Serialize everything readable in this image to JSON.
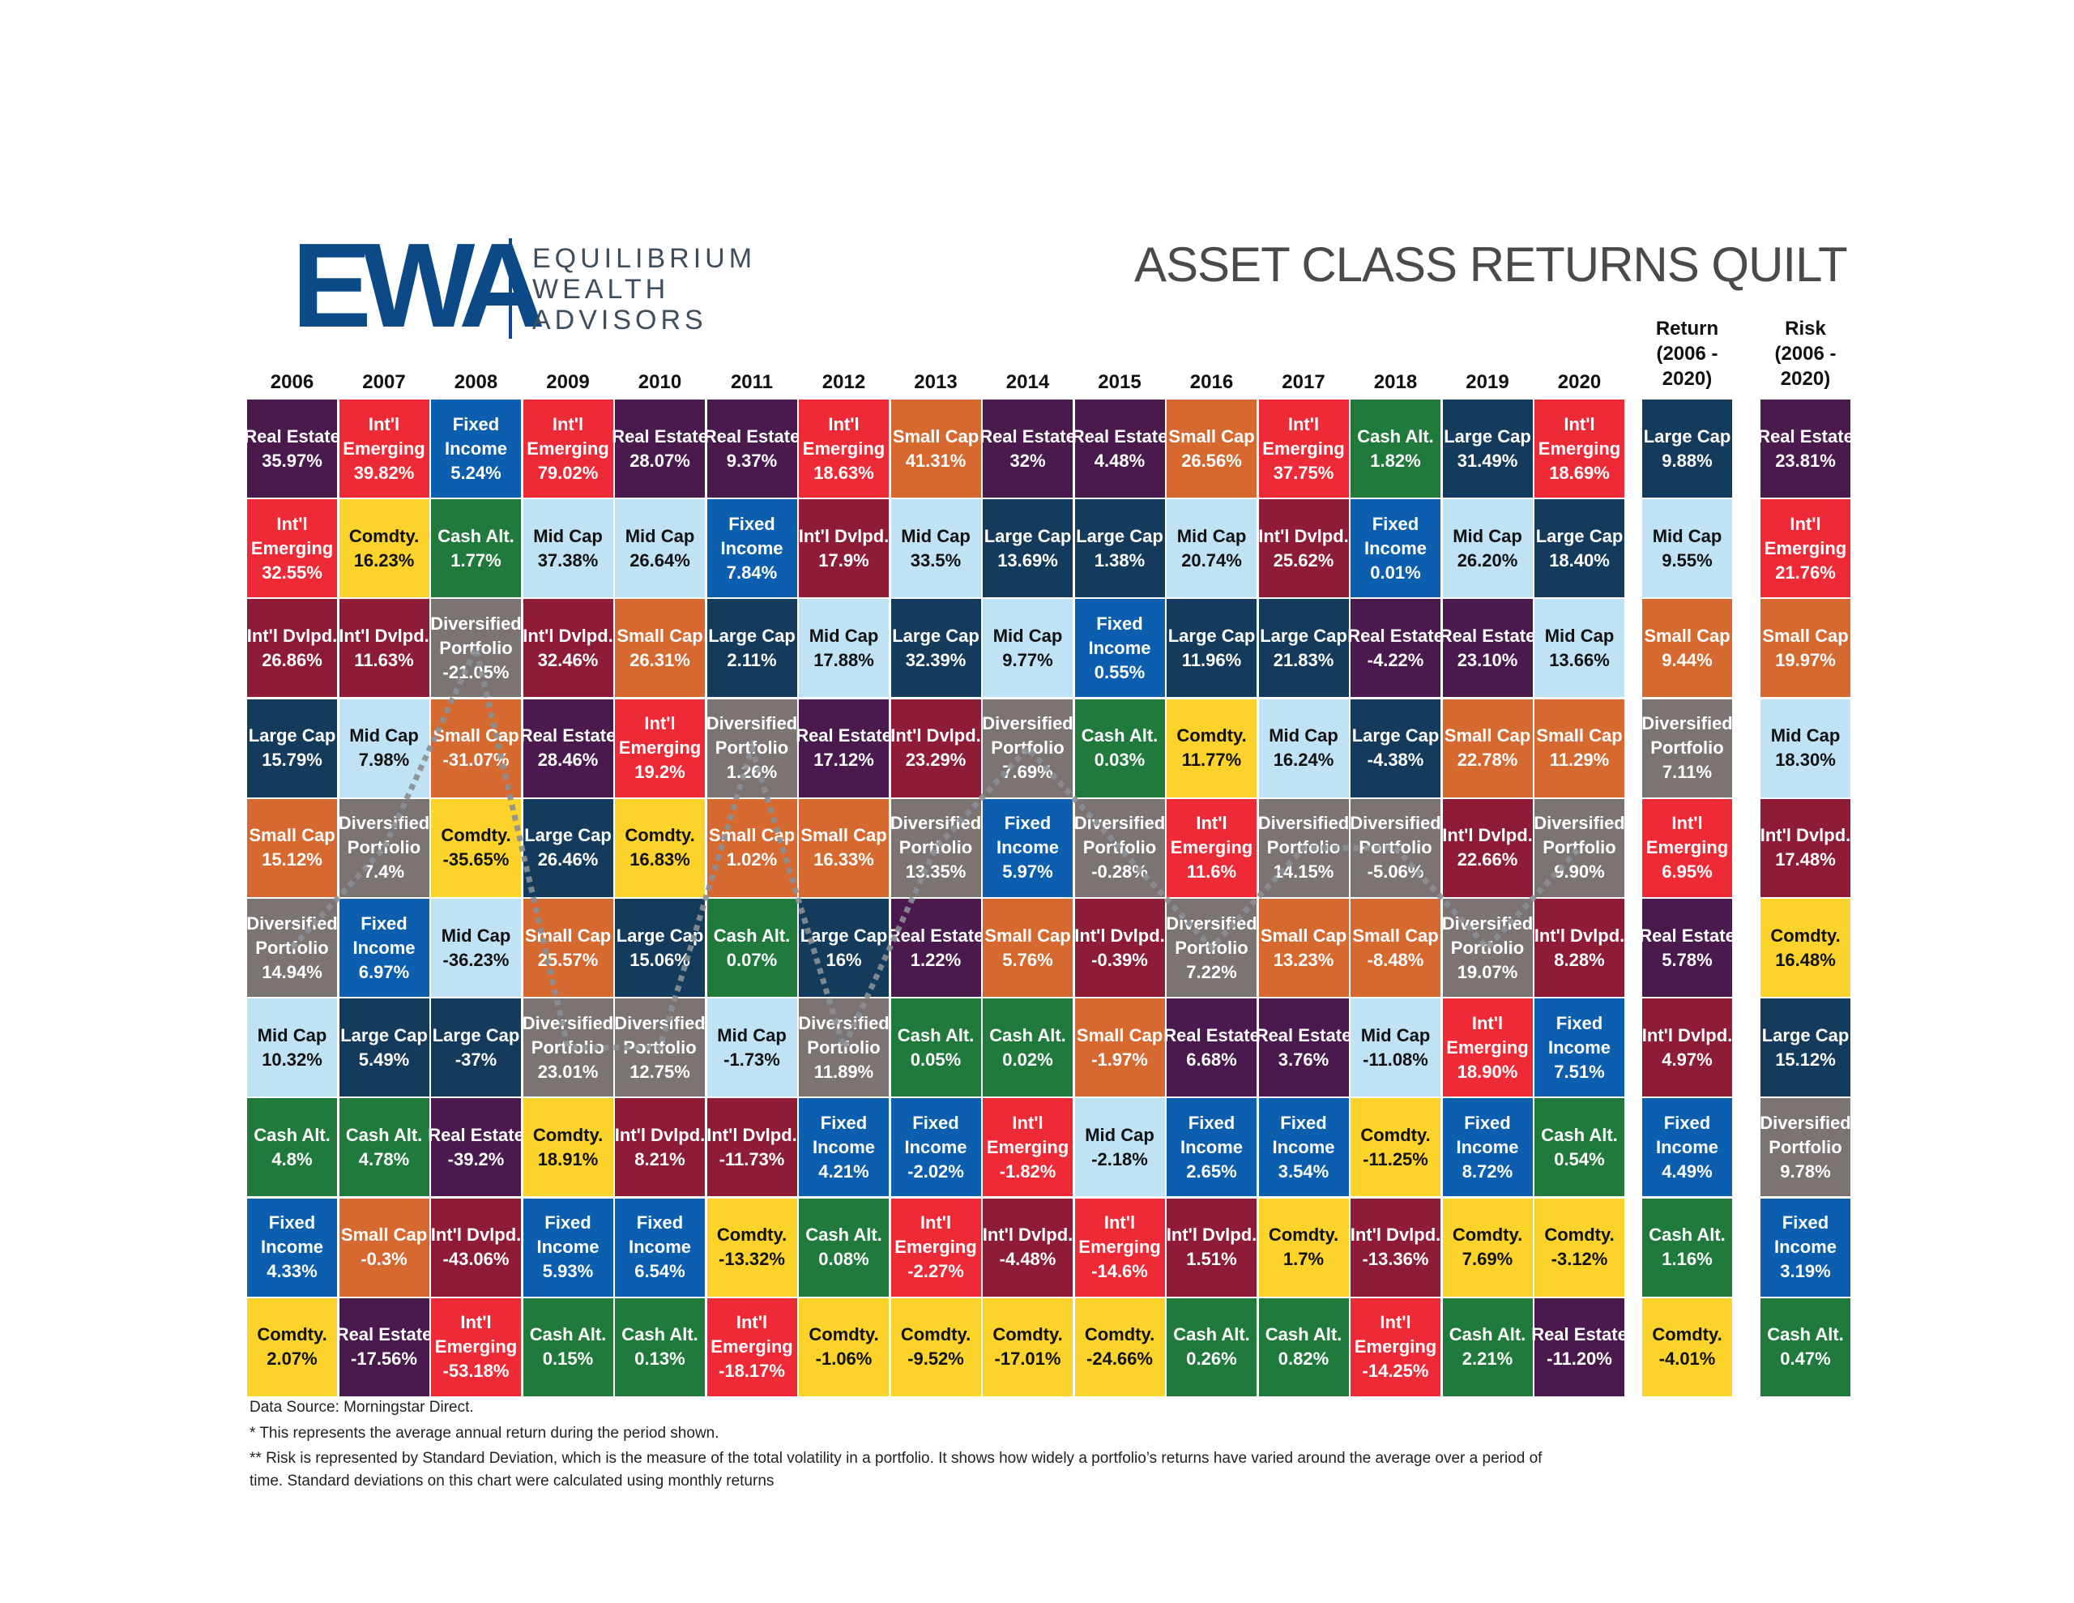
{
  "logo": {
    "mark": "EWA",
    "lines": [
      "EQUILIBRIUM",
      "WEALTH",
      "ADVISORS"
    ]
  },
  "title": "ASSET CLASS RETURNS QUILT",
  "colors": {
    "Real Estate": "#4a1a4e",
    "Int'l Emerging": "#ed2a36",
    "Fixed Income": "#0b5fae",
    "Int'l Dvlpd.": "#8e1c36",
    "Comdty.": "#fbd32a",
    "Cash Alt.": "#1f7a3c",
    "Mid Cap": "#bfe2f4",
    "Diversified Portfolio": "#7b7472",
    "Large Cap": "#143a5c",
    "Small Cap": "#d6692f"
  },
  "dark_text_classes": [
    "Comdty.",
    "Mid Cap"
  ],
  "chart_data": {
    "type": "table",
    "title": "ASSET CLASS RETURNS QUILT",
    "years": [
      "2006",
      "2007",
      "2008",
      "2009",
      "2010",
      "2011",
      "2012",
      "2013",
      "2014",
      "2015",
      "2016",
      "2017",
      "2018",
      "2019",
      "2020"
    ],
    "columns": [
      [
        [
          "Real Estate",
          "35.97%"
        ],
        [
          "Int'l Emerging",
          "32.55%"
        ],
        [
          "Int'l Dvlpd.",
          "26.86%"
        ],
        [
          "Large Cap",
          "15.79%"
        ],
        [
          "Small Cap",
          "15.12%"
        ],
        [
          "Diversified Portfolio",
          "14.94%"
        ],
        [
          "Mid Cap",
          "10.32%"
        ],
        [
          "Cash Alt.",
          "4.8%"
        ],
        [
          "Fixed Income",
          "4.33%"
        ],
        [
          "Comdty.",
          "2.07%"
        ]
      ],
      [
        [
          "Int'l Emerging",
          "39.82%"
        ],
        [
          "Comdty.",
          "16.23%"
        ],
        [
          "Int'l Dvlpd.",
          "11.63%"
        ],
        [
          "Mid Cap",
          "7.98%"
        ],
        [
          "Diversified Portfolio",
          "7.4%"
        ],
        [
          "Fixed Income",
          "6.97%"
        ],
        [
          "Large Cap",
          "5.49%"
        ],
        [
          "Cash Alt.",
          "4.78%"
        ],
        [
          "Small Cap",
          "-0.3%"
        ],
        [
          "Real Estate",
          "-17.56%"
        ]
      ],
      [
        [
          "Fixed Income",
          "5.24%"
        ],
        [
          "Cash Alt.",
          "1.77%"
        ],
        [
          "Diversified Portfolio",
          "-21.05%"
        ],
        [
          "Small Cap",
          "-31.07%"
        ],
        [
          "Comdty.",
          "-35.65%"
        ],
        [
          "Mid Cap",
          "-36.23%"
        ],
        [
          "Large Cap",
          "-37%"
        ],
        [
          "Real Estate",
          "-39.2%"
        ],
        [
          "Int'l Dvlpd.",
          "-43.06%"
        ],
        [
          "Int'l Emerging",
          "-53.18%"
        ]
      ],
      [
        [
          "Int'l Emerging",
          "79.02%"
        ],
        [
          "Mid Cap",
          "37.38%"
        ],
        [
          "Int'l Dvlpd.",
          "32.46%"
        ],
        [
          "Real Estate",
          "28.46%"
        ],
        [
          "Large Cap",
          "26.46%"
        ],
        [
          "Small Cap",
          "25.57%"
        ],
        [
          "Diversified Portfolio",
          "23.01%"
        ],
        [
          "Comdty.",
          "18.91%"
        ],
        [
          "Fixed Income",
          "5.93%"
        ],
        [
          "Cash Alt.",
          "0.15%"
        ]
      ],
      [
        [
          "Real Estate",
          "28.07%"
        ],
        [
          "Mid Cap",
          "26.64%"
        ],
        [
          "Small Cap",
          "26.31%"
        ],
        [
          "Int'l Emerging",
          "19.2%"
        ],
        [
          "Comdty.",
          "16.83%"
        ],
        [
          "Large Cap",
          "15.06%"
        ],
        [
          "Diversified Portfolio",
          "12.75%"
        ],
        [
          "Int'l Dvlpd.",
          "8.21%"
        ],
        [
          "Fixed Income",
          "6.54%"
        ],
        [
          "Cash Alt.",
          "0.13%"
        ]
      ],
      [
        [
          "Real Estate",
          "9.37%"
        ],
        [
          "Fixed Income",
          "7.84%"
        ],
        [
          "Large Cap",
          "2.11%"
        ],
        [
          "Diversified Portfolio",
          "1.26%"
        ],
        [
          "Small Cap",
          "1.02%"
        ],
        [
          "Cash Alt.",
          "0.07%"
        ],
        [
          "Mid Cap",
          "-1.73%"
        ],
        [
          "Int'l Dvlpd.",
          "-11.73%"
        ],
        [
          "Comdty.",
          "-13.32%"
        ],
        [
          "Int'l Emerging",
          "-18.17%"
        ]
      ],
      [
        [
          "Int'l Emerging",
          "18.63%"
        ],
        [
          "Int'l Dvlpd.",
          "17.9%"
        ],
        [
          "Mid Cap",
          "17.88%"
        ],
        [
          "Real Estate",
          "17.12%"
        ],
        [
          "Small Cap",
          "16.33%"
        ],
        [
          "Large Cap",
          "16%"
        ],
        [
          "Diversified Portfolio",
          "11.89%"
        ],
        [
          "Fixed Income",
          "4.21%"
        ],
        [
          "Cash Alt.",
          "0.08%"
        ],
        [
          "Comdty.",
          "-1.06%"
        ]
      ],
      [
        [
          "Small Cap",
          "41.31%"
        ],
        [
          "Mid Cap",
          "33.5%"
        ],
        [
          "Large Cap",
          "32.39%"
        ],
        [
          "Int'l Dvlpd.",
          "23.29%"
        ],
        [
          "Diversified Portfolio",
          "13.35%"
        ],
        [
          "Real Estate",
          "1.22%"
        ],
        [
          "Cash Alt.",
          "0.05%"
        ],
        [
          "Fixed Income",
          "-2.02%"
        ],
        [
          "Int'l Emerging",
          "-2.27%"
        ],
        [
          "Comdty.",
          "-9.52%"
        ]
      ],
      [
        [
          "Real Estate",
          "32%"
        ],
        [
          "Large Cap",
          "13.69%"
        ],
        [
          "Mid Cap",
          "9.77%"
        ],
        [
          "Diversified Portfolio",
          "7.69%"
        ],
        [
          "Fixed Income",
          "5.97%"
        ],
        [
          "Small Cap",
          "5.76%"
        ],
        [
          "Cash Alt.",
          "0.02%"
        ],
        [
          "Int'l Emerging",
          "-1.82%"
        ],
        [
          "Int'l Dvlpd.",
          "-4.48%"
        ],
        [
          "Comdty.",
          "-17.01%"
        ]
      ],
      [
        [
          "Real Estate",
          "4.48%"
        ],
        [
          "Large Cap",
          "1.38%"
        ],
        [
          "Fixed Income",
          "0.55%"
        ],
        [
          "Cash Alt.",
          "0.03%"
        ],
        [
          "Diversified Portfolio",
          "-0.28%"
        ],
        [
          "Int'l Dvlpd.",
          "-0.39%"
        ],
        [
          "Small Cap",
          "-1.97%"
        ],
        [
          "Mid Cap",
          "-2.18%"
        ],
        [
          "Int'l Emerging",
          "-14.6%"
        ],
        [
          "Comdty.",
          "-24.66%"
        ]
      ],
      [
        [
          "Small Cap",
          "26.56%"
        ],
        [
          "Mid Cap",
          "20.74%"
        ],
        [
          "Large Cap",
          "11.96%"
        ],
        [
          "Comdty.",
          "11.77%"
        ],
        [
          "Int'l Emerging",
          "11.6%"
        ],
        [
          "Diversified Portfolio",
          "7.22%"
        ],
        [
          "Real Estate",
          "6.68%"
        ],
        [
          "Fixed Income",
          "2.65%"
        ],
        [
          "Int'l Dvlpd.",
          "1.51%"
        ],
        [
          "Cash Alt.",
          "0.26%"
        ]
      ],
      [
        [
          "Int'l Emerging",
          "37.75%"
        ],
        [
          "Int'l Dvlpd.",
          "25.62%"
        ],
        [
          "Large Cap",
          "21.83%"
        ],
        [
          "Mid Cap",
          "16.24%"
        ],
        [
          "Diversified Portfolio",
          "14.15%"
        ],
        [
          "Small Cap",
          "13.23%"
        ],
        [
          "Real Estate",
          "3.76%"
        ],
        [
          "Fixed Income",
          "3.54%"
        ],
        [
          "Comdty.",
          "1.7%"
        ],
        [
          "Cash Alt.",
          "0.82%"
        ]
      ],
      [
        [
          "Cash Alt.",
          "1.82%"
        ],
        [
          "Fixed Income",
          "0.01%"
        ],
        [
          "Real Estate",
          "-4.22%"
        ],
        [
          "Large Cap",
          "-4.38%"
        ],
        [
          "Diversified Portfolio",
          "-5.06%"
        ],
        [
          "Small Cap",
          "-8.48%"
        ],
        [
          "Mid Cap",
          "-11.08%"
        ],
        [
          "Comdty.",
          "-11.25%"
        ],
        [
          "Int'l Dvlpd.",
          "-13.36%"
        ],
        [
          "Int'l Emerging",
          "-14.25%"
        ]
      ],
      [
        [
          "Large Cap",
          "31.49%"
        ],
        [
          "Mid Cap",
          "26.20%"
        ],
        [
          "Real Estate",
          "23.10%"
        ],
        [
          "Small Cap",
          "22.78%"
        ],
        [
          "Int'l Dvlpd.",
          "22.66%"
        ],
        [
          "Diversified Portfolio",
          "19.07%"
        ],
        [
          "Int'l Emerging",
          "18.90%"
        ],
        [
          "Fixed Income",
          "8.72%"
        ],
        [
          "Comdty.",
          "7.69%"
        ],
        [
          "Cash Alt.",
          "2.21%"
        ]
      ],
      [
        [
          "Int'l Emerging",
          "18.69%"
        ],
        [
          "Large Cap",
          "18.40%"
        ],
        [
          "Mid Cap",
          "13.66%"
        ],
        [
          "Small Cap",
          "11.29%"
        ],
        [
          "Diversified Portfolio",
          "9.90%"
        ],
        [
          "Int'l Dvlpd.",
          "8.28%"
        ],
        [
          "Fixed Income",
          "7.51%"
        ],
        [
          "Cash Alt.",
          "0.54%"
        ],
        [
          "Comdty.",
          "-3.12%"
        ],
        [
          "Real Estate",
          "-11.20%"
        ]
      ]
    ],
    "return_header": "Return\n(2006 -\n2020)",
    "risk_header": "Risk\n(2006 -\n2020)",
    "return": [
      [
        "Large Cap",
        "9.88%"
      ],
      [
        "Mid Cap",
        "9.55%"
      ],
      [
        "Small Cap",
        "9.44%"
      ],
      [
        "Diversified Portfolio",
        "7.11%"
      ],
      [
        "Int'l Emerging",
        "6.95%"
      ],
      [
        "Real Estate",
        "5.78%"
      ],
      [
        "Int'l Dvlpd.",
        "4.97%"
      ],
      [
        "Fixed Income",
        "4.49%"
      ],
      [
        "Cash Alt.",
        "1.16%"
      ],
      [
        "Comdty.",
        "-4.01%"
      ]
    ],
    "risk": [
      [
        "Real Estate",
        "23.81%"
      ],
      [
        "Int'l Emerging",
        "21.76%"
      ],
      [
        "Small Cap",
        "19.97%"
      ],
      [
        "Mid Cap",
        "18.30%"
      ],
      [
        "Int'l Dvlpd.",
        "17.48%"
      ],
      [
        "Comdty.",
        "16.48%"
      ],
      [
        "Large Cap",
        "15.12%"
      ],
      [
        "Diversified Portfolio",
        "9.78%"
      ],
      [
        "Fixed Income",
        "3.19%"
      ],
      [
        "Cash Alt.",
        "0.47%"
      ]
    ]
  },
  "footnotes": [
    "Data Source: Morningstar Direct.",
    "* This represents the average annual return during the period shown.",
    "** Risk is represented by Standard Deviation, which is the measure of the total volatility in a portfolio. It shows how widely a portfolio’s returns have varied around the average over a period of",
    "time. Standard deviations on this chart were calculated using monthly returns"
  ]
}
